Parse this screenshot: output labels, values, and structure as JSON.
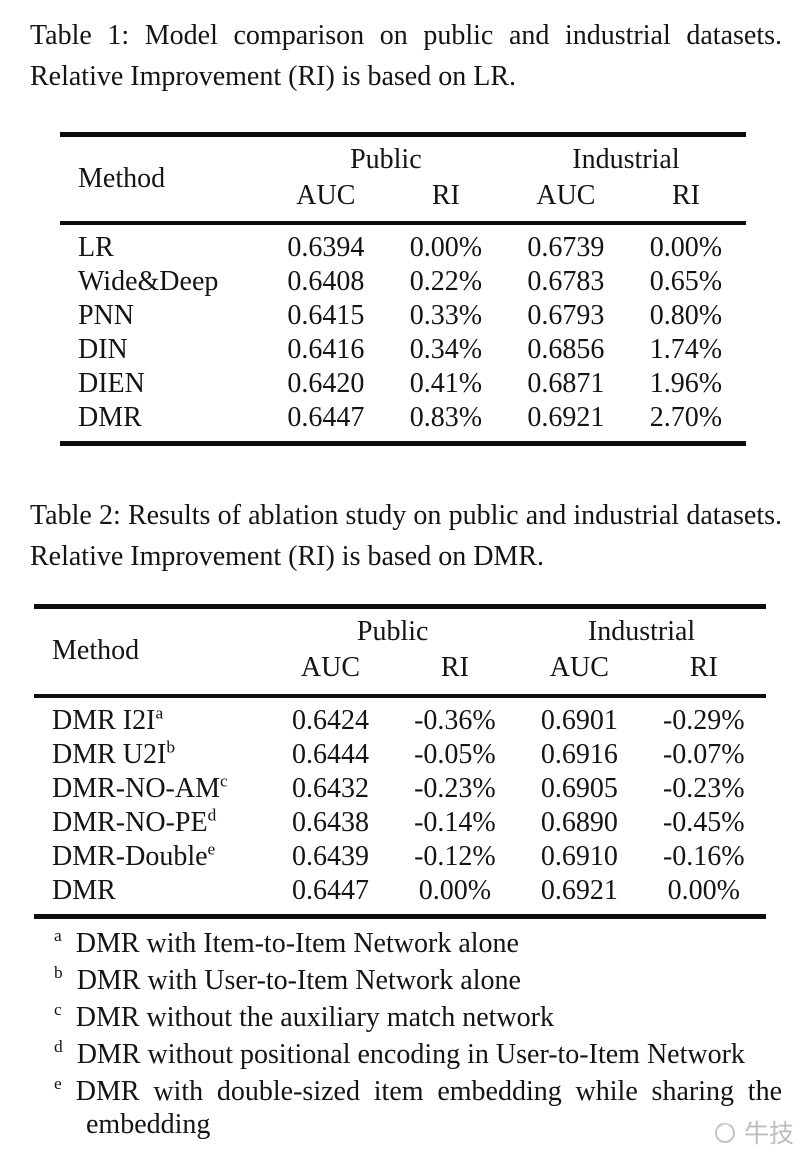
{
  "page": {
    "background": "#ffffff",
    "text_color": "#141414",
    "rule_color": "#0d0d0d"
  },
  "table1": {
    "caption": "Table 1: Model comparison on public and industrial datasets. Relative Improvement (RI) is based on LR.",
    "headers": {
      "method": "Method",
      "group1": "Public",
      "group2": "Industrial",
      "sub": [
        "AUC",
        "RI",
        "AUC",
        "RI"
      ]
    },
    "rows": [
      {
        "method": "LR",
        "sup": "",
        "values": [
          "0.6394",
          "0.00%",
          "0.6739",
          "0.00%"
        ]
      },
      {
        "method": "Wide&Deep",
        "sup": "",
        "values": [
          "0.6408",
          "0.22%",
          "0.6783",
          "0.65%"
        ]
      },
      {
        "method": "PNN",
        "sup": "",
        "values": [
          "0.6415",
          "0.33%",
          "0.6793",
          "0.80%"
        ]
      },
      {
        "method": "DIN",
        "sup": "",
        "values": [
          "0.6416",
          "0.34%",
          "0.6856",
          "1.74%"
        ]
      },
      {
        "method": "DIEN",
        "sup": "",
        "values": [
          "0.6420",
          "0.41%",
          "0.6871",
          "1.96%"
        ]
      },
      {
        "method": "DMR",
        "sup": "",
        "values": [
          "0.6447",
          "0.83%",
          "0.6921",
          "2.70%"
        ]
      }
    ]
  },
  "table2": {
    "caption": "Table 2: Results of ablation study on public and industrial datasets. Relative Improvement (RI) is based on DMR.",
    "headers": {
      "method": "Method",
      "group1": "Public",
      "group2": "Industrial",
      "sub": [
        "AUC",
        "RI",
        "AUC",
        "RI"
      ]
    },
    "rows": [
      {
        "method": "DMR I2I",
        "sup": "a",
        "values": [
          "0.6424",
          "-0.36%",
          "0.6901",
          "-0.29%"
        ]
      },
      {
        "method": "DMR U2I",
        "sup": "b",
        "values": [
          "0.6444",
          "-0.05%",
          "0.6916",
          "-0.07%"
        ]
      },
      {
        "method": "DMR-NO-AM",
        "sup": "c",
        "values": [
          "0.6432",
          "-0.23%",
          "0.6905",
          "-0.23%"
        ]
      },
      {
        "method": "DMR-NO-PE",
        "sup": "d",
        "values": [
          "0.6438",
          "-0.14%",
          "0.6890",
          "-0.45%"
        ]
      },
      {
        "method": "DMR-Double",
        "sup": "e",
        "values": [
          "0.6439",
          "-0.12%",
          "0.6910",
          "-0.16%"
        ]
      },
      {
        "method": "DMR",
        "sup": "",
        "values": [
          "0.6447",
          "0.00%",
          "0.6921",
          "0.00%"
        ]
      }
    ],
    "footnotes": [
      {
        "marker": "a",
        "text": "DMR with Item-to-Item Network alone"
      },
      {
        "marker": "b",
        "text": "DMR with User-to-Item Network alone"
      },
      {
        "marker": "c",
        "text": "DMR without the auxiliary match network"
      },
      {
        "marker": "d",
        "text": "DMR without positional encoding in User-to-Item Network"
      },
      {
        "marker": "e",
        "text": "DMR with double-sized item embedding while sharing the embedding"
      }
    ]
  },
  "watermark": {
    "icon": "circle-logo-icon",
    "text": "牛技",
    "color": "#bdbdbd"
  }
}
